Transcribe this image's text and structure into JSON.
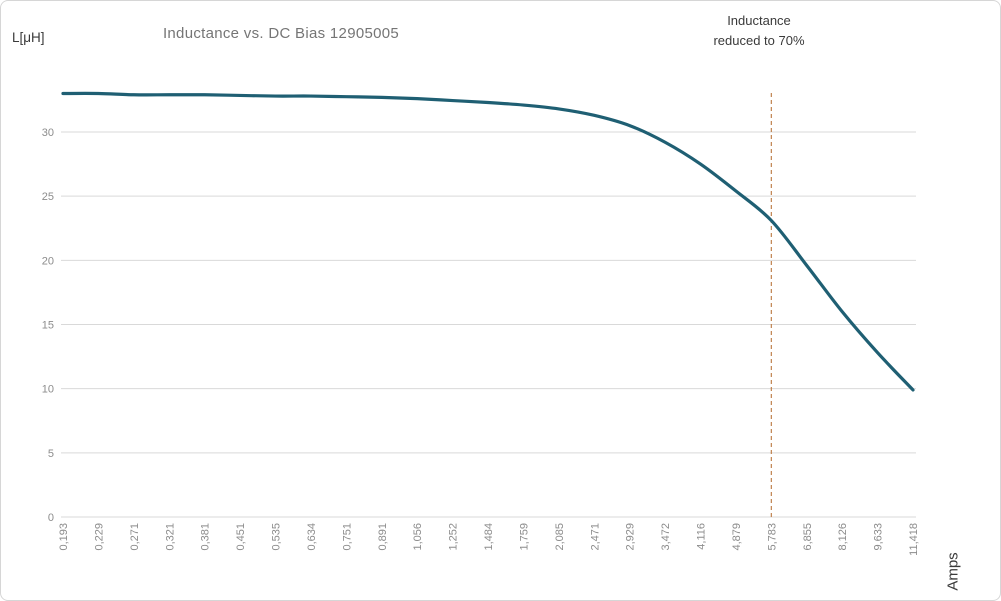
{
  "title": "Inductance vs. DC Bias 12905005",
  "y_axis_label": "L[μH]",
  "x_axis_label": "Amps",
  "annotation": {
    "line1": "Inductance",
    "line2": "reduced to 70%"
  },
  "colors": {
    "curve": "#1F5F73",
    "marker_line": "#C0824E",
    "grid": "#D9D9D9",
    "title_text": "#757575",
    "tick_text": "#8C8C8C",
    "dark_text": "#3A3A3A",
    "border": "#D6D6D6"
  },
  "chart_data": {
    "type": "line",
    "title": "Inductance vs. DC Bias 12905005",
    "xlabel": "Amps",
    "ylabel": "L[μH]",
    "x": [
      "0,193",
      "0,229",
      "0,271",
      "0,321",
      "0,381",
      "0,451",
      "0,535",
      "0,634",
      "0,751",
      "0,891",
      "1,056",
      "1,252",
      "1,484",
      "1,759",
      "2,085",
      "2,471",
      "2,929",
      "3,472",
      "4,116",
      "4,879",
      "5,783",
      "6,855",
      "8,126",
      "9,633",
      "11,418"
    ],
    "series": [
      {
        "name": "Inductance",
        "values": [
          33.0,
          33.0,
          32.9,
          32.9,
          32.9,
          32.85,
          32.8,
          32.8,
          32.75,
          32.7,
          32.6,
          32.45,
          32.3,
          32.1,
          31.8,
          31.3,
          30.5,
          29.2,
          27.5,
          25.4,
          23.1,
          19.6,
          16.0,
          12.8,
          9.9
        ]
      }
    ],
    "yticks": [
      0,
      5,
      10,
      15,
      20,
      25,
      30
    ],
    "ylim": [
      0,
      33.5
    ],
    "grid": true,
    "legend": "none",
    "marker_line": {
      "x": "5,783",
      "value_at_marker": 23.1,
      "label": "Inductance reduced to 70%",
      "style": "dashed-vertical"
    }
  }
}
